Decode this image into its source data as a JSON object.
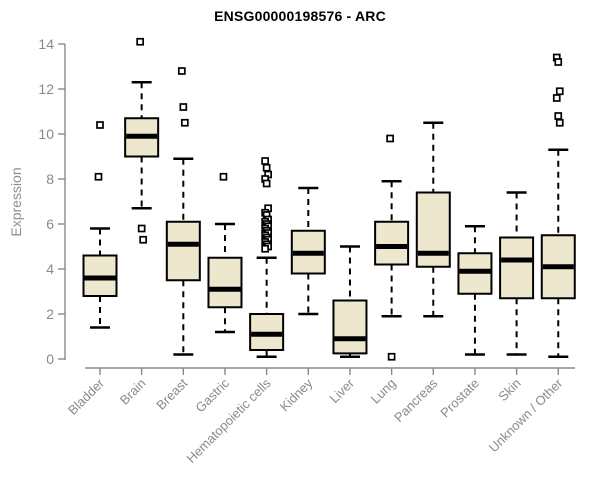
{
  "chart_data": {
    "type": "boxplot",
    "title": "ENSG00000198576 - ARC",
    "ylabel": "Expression",
    "xlabel": "",
    "ylim": [
      0,
      14
    ],
    "yticks": [
      0,
      2,
      4,
      6,
      8,
      10,
      12,
      14
    ],
    "grid": false,
    "legend": null,
    "colors": {
      "box_fill": "#EDE7CE",
      "box_border": "#000000",
      "median": "#000000",
      "whisker": "#000000",
      "outlier_fill": "#FFFFFF",
      "outlier_stroke": "#000000",
      "axis": "#8A8A8A",
      "tick_label": "#8A8A8A",
      "title": "#000000"
    },
    "categories": [
      "Bladder",
      "Brain",
      "Breast",
      "Gastric",
      "Hematopoietic cells",
      "Kidney",
      "Liver",
      "Lung",
      "Pancreas",
      "Prostate",
      "Skin",
      "Unknown / Other"
    ],
    "series": [
      {
        "name": "Bladder",
        "whisker_low": 1.4,
        "q1": 2.8,
        "median": 3.6,
        "q3": 4.6,
        "whisker_high": 5.8,
        "outliers": [
          8.1,
          10.4
        ]
      },
      {
        "name": "Brain",
        "whisker_low": 6.7,
        "q1": 9.0,
        "median": 9.9,
        "q3": 10.7,
        "whisker_high": 12.3,
        "outliers": [
          14.1,
          5.8,
          5.3
        ]
      },
      {
        "name": "Breast",
        "whisker_low": 0.2,
        "q1": 3.5,
        "median": 5.1,
        "q3": 6.1,
        "whisker_high": 8.9,
        "outliers": [
          12.8,
          11.2,
          10.5
        ]
      },
      {
        "name": "Gastric",
        "whisker_low": 1.2,
        "q1": 2.3,
        "median": 3.1,
        "q3": 4.5,
        "whisker_high": 6.0,
        "outliers": [
          8.1
        ]
      },
      {
        "name": "Hematopoietic cells",
        "whisker_low": 0.1,
        "q1": 0.4,
        "median": 1.1,
        "q3": 2.0,
        "whisker_high": 4.5,
        "outliers": [
          8.8,
          8.5,
          8.2,
          8.0,
          7.8,
          6.7,
          6.5,
          6.4,
          6.2,
          6.1,
          6.0,
          5.9,
          5.8,
          5.7,
          5.6,
          5.5,
          5.4,
          5.3,
          5.2,
          5.1,
          5.0,
          4.9
        ]
      },
      {
        "name": "Kidney",
        "whisker_low": 2.0,
        "q1": 3.8,
        "median": 4.7,
        "q3": 5.7,
        "whisker_high": 7.6,
        "outliers": []
      },
      {
        "name": "Liver",
        "whisker_low": 0.1,
        "q1": 0.25,
        "median": 0.9,
        "q3": 2.6,
        "whisker_high": 5.0,
        "outliers": []
      },
      {
        "name": "Lung",
        "whisker_low": 1.9,
        "q1": 4.2,
        "median": 5.0,
        "q3": 6.1,
        "whisker_high": 7.9,
        "outliers": [
          9.8,
          0.1
        ]
      },
      {
        "name": "Pancreas",
        "whisker_low": 1.9,
        "q1": 4.1,
        "median": 4.7,
        "q3": 7.4,
        "whisker_high": 10.5,
        "outliers": []
      },
      {
        "name": "Prostate",
        "whisker_low": 0.2,
        "q1": 2.9,
        "median": 3.9,
        "q3": 4.7,
        "whisker_high": 5.9,
        "outliers": []
      },
      {
        "name": "Skin",
        "whisker_low": 0.2,
        "q1": 2.7,
        "median": 4.4,
        "q3": 5.4,
        "whisker_high": 7.4,
        "outliers": []
      },
      {
        "name": "Unknown / Other",
        "whisker_low": 0.1,
        "q1": 2.7,
        "median": 4.1,
        "q3": 5.5,
        "whisker_high": 9.3,
        "outliers": [
          13.4,
          13.2,
          11.9,
          11.6,
          10.8,
          10.5
        ]
      }
    ]
  }
}
